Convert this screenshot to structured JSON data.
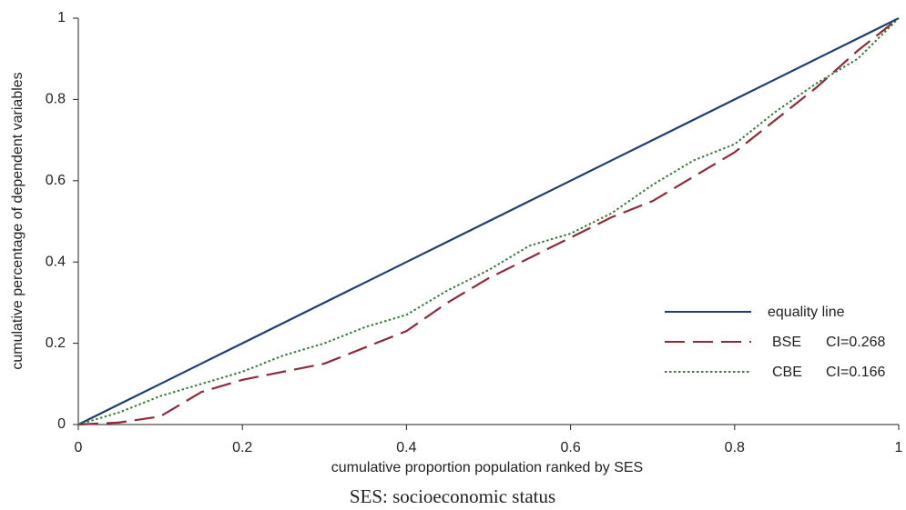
{
  "chart_data": {
    "type": "line",
    "x_label": "cumulative proportion population ranked by SES",
    "y_label": "cumulative percentage of dependent variables",
    "caption": "SES: socioeconomic status",
    "x": [
      0,
      0.05,
      0.1,
      0.15,
      0.2,
      0.25,
      0.3,
      0.35,
      0.4,
      0.45,
      0.5,
      0.55,
      0.6,
      0.65,
      0.7,
      0.75,
      0.8,
      0.85,
      0.9,
      0.95,
      1
    ],
    "series": [
      {
        "name": "equality line",
        "color": "#1f3f6e",
        "dash": "solid",
        "values": [
          0,
          0.05,
          0.1,
          0.15,
          0.2,
          0.25,
          0.3,
          0.35,
          0.4,
          0.45,
          0.5,
          0.55,
          0.6,
          0.65,
          0.7,
          0.75,
          0.8,
          0.85,
          0.9,
          0.95,
          1
        ]
      },
      {
        "name": "BSE",
        "note": "CI=0.268",
        "color": "#8b2c3a",
        "dash": "dashed",
        "values": [
          0,
          0.005,
          0.02,
          0.08,
          0.11,
          0.13,
          0.15,
          0.19,
          0.23,
          0.3,
          0.36,
          0.41,
          0.46,
          0.51,
          0.55,
          0.61,
          0.67,
          0.75,
          0.83,
          0.92,
          1
        ]
      },
      {
        "name": "CBE",
        "note": "CI=0.166",
        "color": "#3a7a3a",
        "dash": "dotted",
        "values": [
          0,
          0.03,
          0.07,
          0.1,
          0.13,
          0.17,
          0.2,
          0.24,
          0.27,
          0.33,
          0.38,
          0.44,
          0.47,
          0.52,
          0.59,
          0.65,
          0.69,
          0.77,
          0.84,
          0.9,
          1
        ]
      }
    ],
    "xlim": [
      0,
      1
    ],
    "ylim": [
      0,
      1
    ],
    "xticks": [
      0,
      0.2,
      0.4,
      0.6,
      0.8,
      1
    ],
    "yticks": [
      0,
      0.2,
      0.4,
      0.6,
      0.8,
      1
    ],
    "grid": false,
    "legend": "lower right"
  }
}
